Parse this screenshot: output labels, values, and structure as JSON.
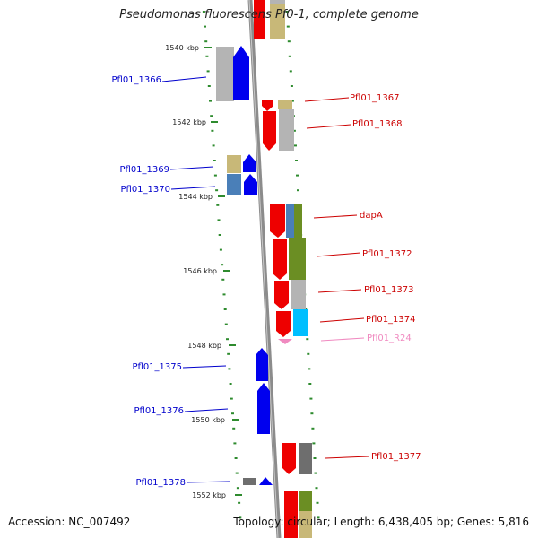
{
  "title": "Pseudomonas fluorescens Pf0-1, complete genome",
  "footer": {
    "accession": "Accession: NC_007492",
    "summary": "Topology: circular; Length: 6,438,405 bp; Genes: 5,816"
  },
  "colors": {
    "backbone": "#8c8c8c",
    "tick": "#2e8b2e",
    "forward_gene": "#0000ee",
    "reverse_gene": "#ee0000",
    "rna_gene": "#f08ac0",
    "gray_feature": "#b4b4b4",
    "dark_gray_feature": "#6e6e6e",
    "olive_feature": "#c8b878",
    "steel_feature": "#4a7fb8",
    "green_feature": "#6b8e23",
    "cyan_feature": "#00bfff"
  },
  "scale_labels": [
    "1540 kbp",
    "1542 kbp",
    "1544 kbp",
    "1546 kbp",
    "1548 kbp",
    "1550 kbp",
    "1552 kbp"
  ],
  "gene_labels": {
    "left": [
      "Pfl01_1366",
      "Pfl01_1369",
      "Pfl01_1370",
      "Pfl01_1375",
      "Pfl01_1376",
      "Pfl01_1378"
    ],
    "right": [
      "Pfl01_1367",
      "Pfl01_1368",
      "dapA",
      "Pfl01_1372",
      "Pfl01_1373",
      "Pfl01_1374",
      "Pfl01_R24",
      "Pfl01_1377"
    ]
  }
}
